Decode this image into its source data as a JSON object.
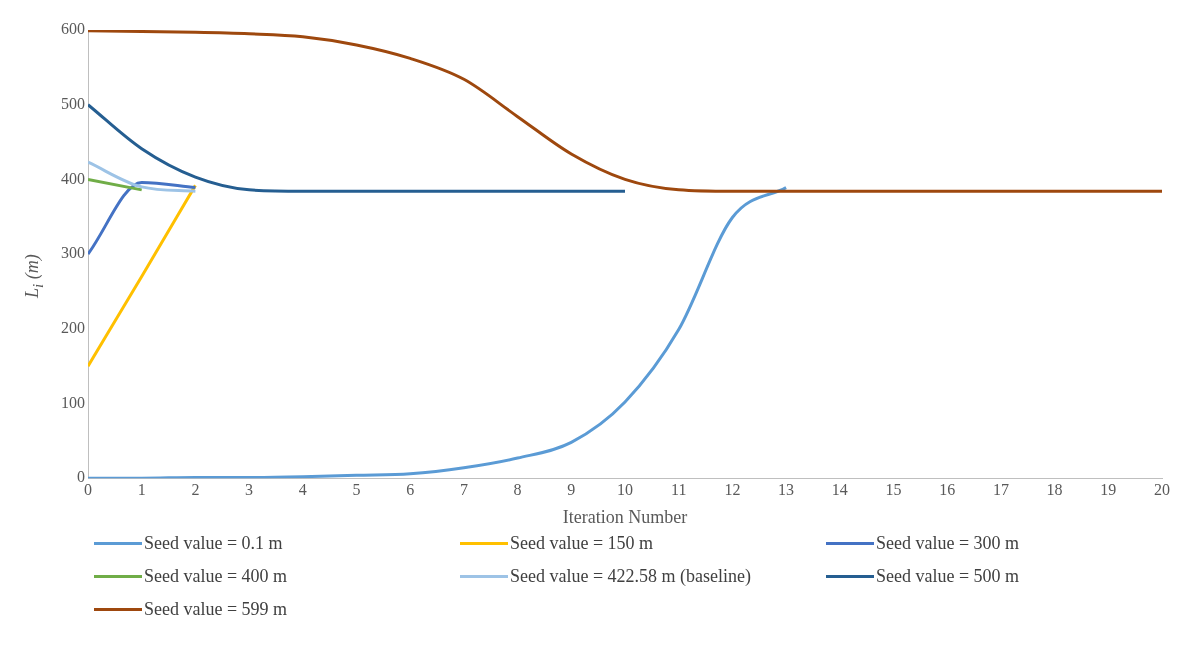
{
  "chart_data": {
    "type": "line",
    "xlabel": "Iteration Number",
    "ylabel": "L$_{i}$  (m)",
    "x": [
      0,
      1,
      2,
      3,
      4,
      5,
      6,
      7,
      8,
      9,
      10,
      11,
      12,
      13,
      14,
      15,
      16,
      17,
      18,
      19,
      20
    ],
    "xlim": [
      0,
      20
    ],
    "xticks": [
      0,
      1,
      2,
      3,
      4,
      5,
      6,
      7,
      8,
      9,
      10,
      11,
      12,
      13,
      14,
      15,
      16,
      17,
      18,
      19,
      20
    ],
    "ylim": [
      0,
      600
    ],
    "yticks": [
      0,
      100,
      200,
      300,
      400,
      500,
      600
    ],
    "grid": false,
    "legend": "bottom",
    "marker": "none",
    "line_style": "solid",
    "series": [
      {
        "name": "Seed value = 0.1 m",
        "color": "#5b9bd5",
        "values": [
          0,
          0,
          1,
          1,
          2,
          4,
          6,
          14,
          27,
          48,
          102,
          199,
          349,
          389,
          null,
          null,
          null,
          null,
          null,
          null,
          null
        ]
      },
      {
        "name": "Seed value = 150 m",
        "color": "#ffc000",
        "values": [
          150,
          270,
          392,
          null,
          null,
          null,
          null,
          null,
          null,
          null,
          null,
          null,
          null,
          null,
          null,
          null,
          null,
          null,
          null,
          null,
          null
        ]
      },
      {
        "name": "Seed value = 300 m",
        "color": "#4472c4",
        "values": [
          300,
          396,
          389,
          null,
          null,
          null,
          null,
          null,
          null,
          null,
          null,
          null,
          null,
          null,
          null,
          null,
          null,
          null,
          null,
          null,
          null
        ]
      },
      {
        "name": "Seed value = 400 m",
        "color": "#70ad47",
        "values": [
          400,
          386,
          null,
          null,
          null,
          null,
          null,
          null,
          null,
          null,
          null,
          null,
          null,
          null,
          null,
          null,
          null,
          null,
          null,
          null,
          null
        ]
      },
      {
        "name": "Seed value = 422.58 m (baseline)",
        "color": "#9dc3e6",
        "values": [
          423,
          390,
          384,
          null,
          null,
          null,
          null,
          null,
          null,
          null,
          null,
          null,
          null,
          null,
          null,
          null,
          null,
          null,
          null,
          null,
          null
        ]
      },
      {
        "name": "Seed value = 500 m",
        "color": "#255e91",
        "values": [
          500,
          441,
          403,
          386,
          384,
          384,
          384,
          384,
          384,
          384,
          384,
          null,
          null,
          null,
          null,
          null,
          null,
          null,
          null,
          null,
          null
        ]
      },
      {
        "name": "Seed value = 599 m",
        "color": "#9e480e",
        "values": [
          599,
          598,
          597,
          595,
          591,
          580,
          562,
          534,
          484,
          434,
          400,
          386,
          384,
          384,
          384,
          384,
          384,
          384,
          384,
          384,
          384
        ]
      }
    ]
  }
}
